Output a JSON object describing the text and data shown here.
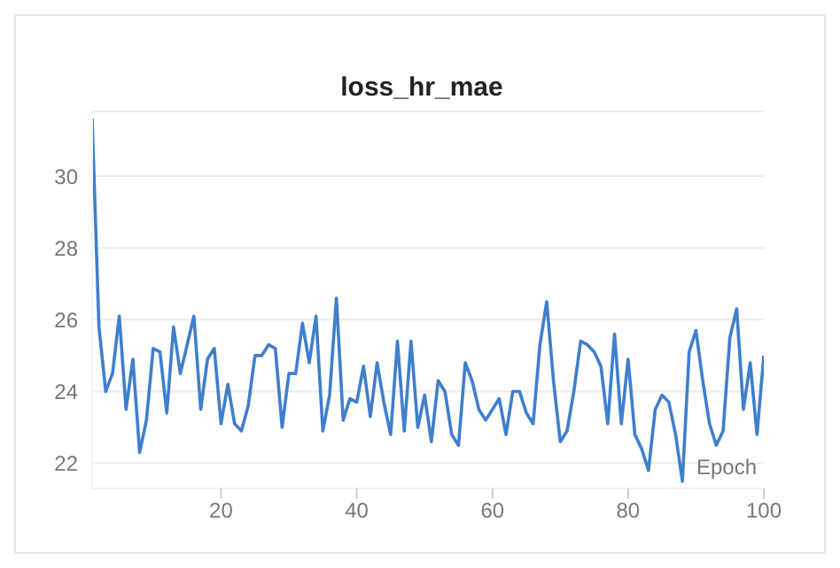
{
  "chart_data": {
    "type": "line",
    "title": "loss_hr_mae",
    "xlabel": "Epoch",
    "x": [
      1,
      2,
      3,
      4,
      5,
      6,
      7,
      8,
      9,
      10,
      11,
      12,
      13,
      14,
      15,
      16,
      17,
      18,
      19,
      20,
      21,
      22,
      23,
      24,
      25,
      26,
      27,
      28,
      29,
      30,
      31,
      32,
      33,
      34,
      35,
      36,
      37,
      38,
      39,
      40,
      41,
      42,
      43,
      44,
      45,
      46,
      47,
      48,
      49,
      50,
      51,
      52,
      53,
      54,
      55,
      56,
      57,
      58,
      59,
      60,
      61,
      62,
      63,
      64,
      65,
      66,
      67,
      68,
      69,
      70,
      71,
      72,
      73,
      74,
      75,
      76,
      77,
      78,
      79,
      80,
      81,
      82,
      83,
      84,
      85,
      86,
      87,
      88,
      89,
      90,
      91,
      92,
      93,
      94,
      95,
      96,
      97,
      98,
      99,
      100
    ],
    "series": [
      {
        "color": "#3f7fcc",
        "values": [
          31.6,
          25.8,
          24.0,
          24.5,
          26.1,
          23.5,
          24.9,
          22.3,
          23.2,
          25.2,
          25.1,
          23.4,
          25.8,
          24.5,
          25.3,
          26.1,
          23.5,
          24.9,
          25.2,
          23.1,
          24.2,
          23.1,
          22.9,
          23.6,
          25.0,
          25.0,
          25.3,
          25.2,
          23.0,
          24.5,
          24.5,
          25.9,
          24.8,
          26.1,
          22.9,
          23.9,
          26.6,
          23.2,
          23.8,
          23.7,
          24.7,
          23.3,
          24.8,
          23.7,
          22.8,
          25.4,
          22.9,
          25.4,
          23.0,
          23.9,
          22.6,
          24.3,
          24.0,
          22.8,
          22.5,
          24.8,
          24.3,
          23.5,
          23.2,
          23.5,
          23.8,
          22.8,
          24.0,
          24.0,
          23.4,
          23.1,
          25.3,
          26.5,
          24.3,
          22.6,
          22.9,
          24.0,
          25.4,
          25.3,
          25.1,
          24.7,
          23.1,
          25.6,
          23.1,
          24.9,
          22.8,
          22.4,
          21.8,
          23.5,
          23.9,
          23.7,
          22.8,
          21.5,
          25.1,
          25.7,
          24.3,
          23.1,
          22.5,
          22.9,
          25.5,
          26.3,
          23.5,
          24.8,
          22.8,
          25.0
        ]
      }
    ],
    "xlim": [
      1,
      100
    ],
    "xticks": [
      20,
      40,
      60,
      80,
      100
    ],
    "ylim": [
      21.3,
      31.8
    ],
    "yticks": [
      22,
      24,
      26,
      28,
      30
    ],
    "grid": "y",
    "legend": false,
    "marker": "none",
    "line_style": "solid"
  }
}
